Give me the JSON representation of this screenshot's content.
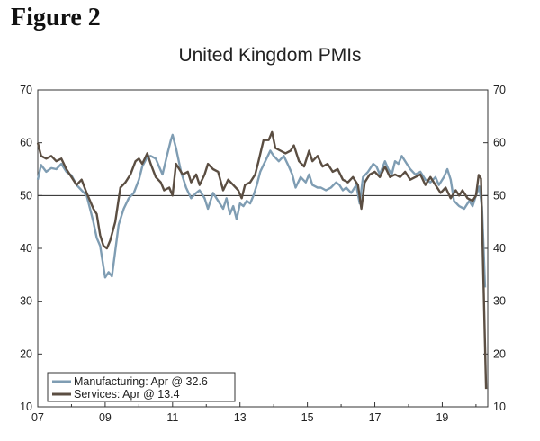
{
  "figure_label": "Figure 2",
  "chart_data": {
    "type": "line",
    "title": "United Kingdom PMIs",
    "xlabel": "",
    "ylabel": "",
    "ylim": [
      10,
      70
    ],
    "yticks": [
      "10",
      "20",
      "30",
      "40",
      "50",
      "60",
      "70"
    ],
    "xlim": [
      2007.0,
      2020.35
    ],
    "xticks": [
      {
        "value": 2007,
        "label": "07"
      },
      {
        "value": 2009,
        "label": "09"
      },
      {
        "value": 2011,
        "label": "11"
      },
      {
        "value": 2013,
        "label": "13"
      },
      {
        "value": 2015,
        "label": "15"
      },
      {
        "value": 2017,
        "label": "17"
      },
      {
        "value": 2019,
        "label": "19"
      }
    ],
    "reference_line": 50,
    "legend_position": "bottom-left",
    "series": [
      {
        "name": "Manufacturing: Apr @ 32.6",
        "color": "#7f9db3",
        "points": [
          [
            2007.0,
            53.0
          ],
          [
            2007.1,
            55.8
          ],
          [
            2007.25,
            54.5
          ],
          [
            2007.4,
            55.2
          ],
          [
            2007.55,
            55.0
          ],
          [
            2007.7,
            56.0
          ],
          [
            2007.85,
            54.5
          ],
          [
            2008.0,
            53.8
          ],
          [
            2008.15,
            52.0
          ],
          [
            2008.3,
            51.0
          ],
          [
            2008.45,
            50.0
          ],
          [
            2008.55,
            47.5
          ],
          [
            2008.65,
            45.0
          ],
          [
            2008.75,
            42.0
          ],
          [
            2008.85,
            40.5
          ],
          [
            2008.95,
            36.5
          ],
          [
            2009.0,
            34.5
          ],
          [
            2009.1,
            35.5
          ],
          [
            2009.2,
            34.7
          ],
          [
            2009.3,
            39.5
          ],
          [
            2009.4,
            44.5
          ],
          [
            2009.55,
            47.5
          ],
          [
            2009.7,
            49.5
          ],
          [
            2009.85,
            50.5
          ],
          [
            2010.0,
            53.0
          ],
          [
            2010.1,
            55.5
          ],
          [
            2010.25,
            57.3
          ],
          [
            2010.35,
            57.5
          ],
          [
            2010.5,
            57.0
          ],
          [
            2010.6,
            55.5
          ],
          [
            2010.7,
            54.0
          ],
          [
            2010.85,
            58.0
          ],
          [
            2010.95,
            60.5
          ],
          [
            2011.0,
            61.5
          ],
          [
            2011.1,
            59.0
          ],
          [
            2011.25,
            54.5
          ],
          [
            2011.4,
            51.5
          ],
          [
            2011.55,
            49.5
          ],
          [
            2011.7,
            50.5
          ],
          [
            2011.8,
            51.0
          ],
          [
            2011.95,
            49.5
          ],
          [
            2012.05,
            47.5
          ],
          [
            2012.2,
            50.5
          ],
          [
            2012.35,
            49.0
          ],
          [
            2012.5,
            47.5
          ],
          [
            2012.6,
            49.5
          ],
          [
            2012.7,
            46.5
          ],
          [
            2012.8,
            48.0
          ],
          [
            2012.9,
            45.5
          ],
          [
            2013.0,
            48.5
          ],
          [
            2013.1,
            48.0
          ],
          [
            2013.2,
            49.0
          ],
          [
            2013.3,
            48.5
          ],
          [
            2013.4,
            50.0
          ],
          [
            2013.5,
            52.0
          ],
          [
            2013.6,
            54.5
          ],
          [
            2013.75,
            56.5
          ],
          [
            2013.9,
            58.5
          ],
          [
            2014.0,
            57.5
          ],
          [
            2014.15,
            56.5
          ],
          [
            2014.3,
            57.5
          ],
          [
            2014.45,
            55.5
          ],
          [
            2014.55,
            54.0
          ],
          [
            2014.65,
            51.5
          ],
          [
            2014.8,
            53.5
          ],
          [
            2014.95,
            52.5
          ],
          [
            2015.05,
            54.0
          ],
          [
            2015.15,
            52.0
          ],
          [
            2015.3,
            51.5
          ],
          [
            2015.4,
            51.5
          ],
          [
            2015.55,
            51.0
          ],
          [
            2015.7,
            51.5
          ],
          [
            2015.85,
            52.5
          ],
          [
            2015.95,
            52.0
          ],
          [
            2016.05,
            51.0
          ],
          [
            2016.15,
            51.5
          ],
          [
            2016.3,
            50.5
          ],
          [
            2016.45,
            52.0
          ],
          [
            2016.55,
            48.5
          ],
          [
            2016.65,
            53.5
          ],
          [
            2016.8,
            54.5
          ],
          [
            2016.95,
            56.0
          ],
          [
            2017.05,
            55.5
          ],
          [
            2017.15,
            54.0
          ],
          [
            2017.3,
            56.5
          ],
          [
            2017.4,
            55.0
          ],
          [
            2017.5,
            54.0
          ],
          [
            2017.6,
            56.5
          ],
          [
            2017.7,
            56.0
          ],
          [
            2017.8,
            57.5
          ],
          [
            2017.95,
            56.0
          ],
          [
            2018.05,
            55.0
          ],
          [
            2018.2,
            54.0
          ],
          [
            2018.35,
            54.5
          ],
          [
            2018.5,
            53.0
          ],
          [
            2018.65,
            52.5
          ],
          [
            2018.8,
            53.5
          ],
          [
            2018.9,
            52.0
          ],
          [
            2019.05,
            53.5
          ],
          [
            2019.15,
            55.0
          ],
          [
            2019.25,
            53.0
          ],
          [
            2019.35,
            49.0
          ],
          [
            2019.5,
            48.0
          ],
          [
            2019.65,
            47.5
          ],
          [
            2019.8,
            49.0
          ],
          [
            2019.9,
            48.0
          ],
          [
            2020.0,
            50.0
          ],
          [
            2020.1,
            51.7
          ],
          [
            2020.18,
            47.8
          ],
          [
            2020.27,
            32.6
          ]
        ]
      },
      {
        "name": "Services: Apr @ 13.4",
        "color": "#5b4e42",
        "points": [
          [
            2007.0,
            60.0
          ],
          [
            2007.1,
            57.5
          ],
          [
            2007.25,
            57.0
          ],
          [
            2007.4,
            57.5
          ],
          [
            2007.55,
            56.5
          ],
          [
            2007.7,
            57.0
          ],
          [
            2007.85,
            55.0
          ],
          [
            2008.0,
            53.5
          ],
          [
            2008.15,
            52.0
          ],
          [
            2008.3,
            53.0
          ],
          [
            2008.45,
            50.5
          ],
          [
            2008.55,
            49.0
          ],
          [
            2008.65,
            47.5
          ],
          [
            2008.75,
            46.5
          ],
          [
            2008.85,
            42.5
          ],
          [
            2008.95,
            40.5
          ],
          [
            2009.05,
            40.0
          ],
          [
            2009.15,
            41.5
          ],
          [
            2009.3,
            45.0
          ],
          [
            2009.45,
            51.5
          ],
          [
            2009.6,
            52.5
          ],
          [
            2009.75,
            54.0
          ],
          [
            2009.9,
            56.5
          ],
          [
            2010.0,
            57.0
          ],
          [
            2010.1,
            56.0
          ],
          [
            2010.25,
            58.0
          ],
          [
            2010.35,
            56.0
          ],
          [
            2010.5,
            53.5
          ],
          [
            2010.65,
            52.5
          ],
          [
            2010.75,
            51.0
          ],
          [
            2010.9,
            51.5
          ],
          [
            2011.0,
            50.0
          ],
          [
            2011.1,
            56.0
          ],
          [
            2011.2,
            55.0
          ],
          [
            2011.3,
            54.0
          ],
          [
            2011.45,
            54.5
          ],
          [
            2011.55,
            52.5
          ],
          [
            2011.7,
            54.0
          ],
          [
            2011.8,
            52.0
          ],
          [
            2011.95,
            54.0
          ],
          [
            2012.05,
            56.0
          ],
          [
            2012.2,
            55.0
          ],
          [
            2012.35,
            54.5
          ],
          [
            2012.5,
            51.0
          ],
          [
            2012.65,
            53.0
          ],
          [
            2012.8,
            52.0
          ],
          [
            2012.95,
            51.0
          ],
          [
            2013.05,
            49.5
          ],
          [
            2013.15,
            52.0
          ],
          [
            2013.3,
            52.5
          ],
          [
            2013.45,
            54.0
          ],
          [
            2013.55,
            56.5
          ],
          [
            2013.7,
            60.5
          ],
          [
            2013.85,
            60.5
          ],
          [
            2013.95,
            62.0
          ],
          [
            2014.05,
            59.0
          ],
          [
            2014.2,
            58.5
          ],
          [
            2014.35,
            58.0
          ],
          [
            2014.5,
            58.5
          ],
          [
            2014.6,
            59.5
          ],
          [
            2014.75,
            56.5
          ],
          [
            2014.9,
            55.5
          ],
          [
            2015.05,
            58.5
          ],
          [
            2015.15,
            56.5
          ],
          [
            2015.3,
            57.5
          ],
          [
            2015.45,
            55.5
          ],
          [
            2015.6,
            56.0
          ],
          [
            2015.75,
            54.5
          ],
          [
            2015.9,
            55.0
          ],
          [
            2016.05,
            53.0
          ],
          [
            2016.2,
            52.5
          ],
          [
            2016.35,
            53.5
          ],
          [
            2016.5,
            52.0
          ],
          [
            2016.6,
            47.5
          ],
          [
            2016.7,
            52.5
          ],
          [
            2016.85,
            54.0
          ],
          [
            2017.0,
            54.5
          ],
          [
            2017.15,
            53.5
          ],
          [
            2017.3,
            55.5
          ],
          [
            2017.45,
            53.5
          ],
          [
            2017.6,
            54.0
          ],
          [
            2017.75,
            53.5
          ],
          [
            2017.9,
            54.5
          ],
          [
            2018.05,
            53.0
          ],
          [
            2018.2,
            53.5
          ],
          [
            2018.35,
            54.0
          ],
          [
            2018.5,
            52.0
          ],
          [
            2018.65,
            53.5
          ],
          [
            2018.8,
            52.0
          ],
          [
            2018.95,
            50.5
          ],
          [
            2019.1,
            51.5
          ],
          [
            2019.25,
            49.5
          ],
          [
            2019.4,
            51.0
          ],
          [
            2019.5,
            50.0
          ],
          [
            2019.6,
            51.0
          ],
          [
            2019.75,
            49.5
          ],
          [
            2019.9,
            49.0
          ],
          [
            2020.0,
            50.0
          ],
          [
            2020.08,
            53.9
          ],
          [
            2020.15,
            53.2
          ],
          [
            2020.22,
            34.5
          ],
          [
            2020.3,
            13.4
          ]
        ]
      }
    ]
  }
}
